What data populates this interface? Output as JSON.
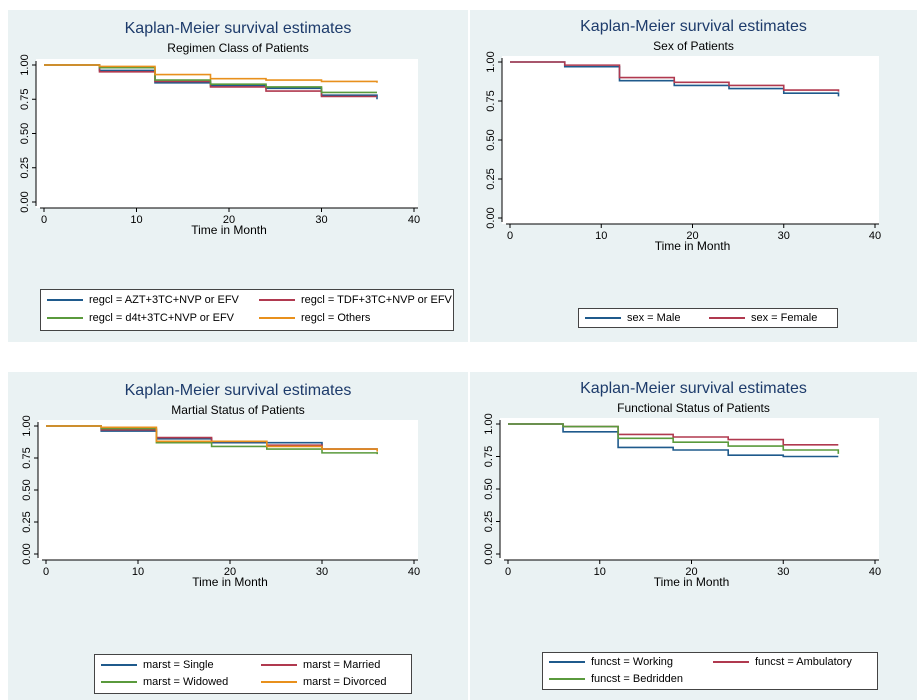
{
  "chart_data": [
    {
      "type": "line",
      "title": "Kaplan-Meier survival estimates",
      "subtitle": "Regimen Class of Patients",
      "xlabel": "Time in Month",
      "ylabel": "",
      "xlim": [
        0,
        40
      ],
      "ylim": [
        0,
        1
      ],
      "xticks": [
        "0",
        "10",
        "20",
        "30",
        "40"
      ],
      "yticks": [
        "0.00",
        "0.25",
        "0.50",
        "0.75",
        "1.00"
      ],
      "step": true,
      "legend_position": "bottom",
      "series": [
        {
          "name": "regcl = AZT+3TC+NVP or EFV",
          "color": "#1f5a8c",
          "x": [
            0,
            6,
            12,
            18,
            24,
            30,
            36
          ],
          "y": [
            1.0,
            0.96,
            0.87,
            0.85,
            0.83,
            0.78,
            0.75
          ]
        },
        {
          "name": "regcl = TDF+3TC+NVP or EFV",
          "color": "#b0394f",
          "x": [
            0,
            6,
            12,
            18,
            24,
            30,
            36
          ],
          "y": [
            1.0,
            0.95,
            0.88,
            0.84,
            0.81,
            0.77,
            0.77
          ]
        },
        {
          "name": "regcl = d4t+3TC+NVP or EFV",
          "color": "#5a9a3c",
          "x": [
            0,
            6,
            12,
            18,
            24,
            30,
            36
          ],
          "y": [
            1.0,
            0.98,
            0.89,
            0.86,
            0.84,
            0.8,
            0.8
          ]
        },
        {
          "name": "regcl = Others",
          "color": "#e8901c",
          "x": [
            0,
            6,
            12,
            18,
            24,
            30,
            36
          ],
          "y": [
            1.0,
            0.99,
            0.93,
            0.9,
            0.89,
            0.88,
            0.87
          ]
        }
      ]
    },
    {
      "type": "line",
      "title": "Kaplan-Meier survival estimates",
      "subtitle": "Sex of Patients",
      "xlabel": "Time in Month",
      "ylabel": "",
      "xlim": [
        0,
        40
      ],
      "ylim": [
        0,
        1
      ],
      "xticks": [
        "0",
        "10",
        "20",
        "30",
        "40"
      ],
      "yticks": [
        "0.00",
        "0.25",
        "0.50",
        "0.75",
        "1.00"
      ],
      "step": true,
      "legend_position": "bottom",
      "series": [
        {
          "name": "sex = Male",
          "color": "#1f5a8c",
          "x": [
            0,
            6,
            12,
            18,
            24,
            30,
            36
          ],
          "y": [
            1.0,
            0.97,
            0.88,
            0.85,
            0.83,
            0.8,
            0.78
          ]
        },
        {
          "name": "sex = Female",
          "color": "#b0394f",
          "x": [
            0,
            6,
            12,
            18,
            24,
            30,
            36
          ],
          "y": [
            1.0,
            0.98,
            0.9,
            0.87,
            0.85,
            0.82,
            0.81
          ]
        }
      ]
    },
    {
      "type": "line",
      "title": "Kaplan-Meier survival estimates",
      "subtitle": "Martial Status of Patients",
      "xlabel": "Time in Month",
      "ylabel": "",
      "xlim": [
        0,
        40
      ],
      "ylim": [
        0,
        1
      ],
      "xticks": [
        "0",
        "10",
        "20",
        "30",
        "40"
      ],
      "yticks": [
        "0.00",
        "0.25",
        "0.50",
        "0.75",
        "1.00"
      ],
      "step": true,
      "legend_position": "bottom",
      "series": [
        {
          "name": "marst = Single",
          "color": "#1f5a8c",
          "x": [
            0,
            6,
            12,
            18,
            24,
            30,
            36
          ],
          "y": [
            1.0,
            0.96,
            0.9,
            0.87,
            0.87,
            0.82,
            0.81
          ]
        },
        {
          "name": "marst = Married",
          "color": "#b0394f",
          "x": [
            0,
            6,
            12,
            18,
            24,
            30,
            36
          ],
          "y": [
            1.0,
            0.97,
            0.91,
            0.88,
            0.85,
            0.82,
            0.82
          ]
        },
        {
          "name": "marst = Widowed",
          "color": "#5a9a3c",
          "x": [
            0,
            6,
            12,
            18,
            24,
            30,
            36
          ],
          "y": [
            1.0,
            0.98,
            0.87,
            0.84,
            0.82,
            0.79,
            0.78
          ]
        },
        {
          "name": "marst = Divorced",
          "color": "#e8901c",
          "x": [
            0,
            6,
            12,
            18,
            24,
            30,
            36
          ],
          "y": [
            1.0,
            0.99,
            0.88,
            0.88,
            0.84,
            0.82,
            0.8
          ]
        }
      ]
    },
    {
      "type": "line",
      "title": "Kaplan-Meier survival estimates",
      "subtitle": "Functional Status of Patients",
      "xlabel": "Time in Month",
      "ylabel": "",
      "xlim": [
        0,
        40
      ],
      "ylim": [
        0,
        1
      ],
      "xticks": [
        "0",
        "10",
        "20",
        "30",
        "40"
      ],
      "yticks": [
        "0.00",
        "0.25",
        "0.50",
        "0.75",
        "1.00"
      ],
      "step": true,
      "legend_position": "bottom",
      "series": [
        {
          "name": "funcst = Working",
          "color": "#1f5a8c",
          "x": [
            0,
            6,
            12,
            18,
            24,
            30,
            36
          ],
          "y": [
            1.0,
            0.94,
            0.82,
            0.8,
            0.76,
            0.75,
            0.75
          ]
        },
        {
          "name": "funcst = Ambulatory",
          "color": "#b0394f",
          "x": [
            0,
            6,
            12,
            18,
            24,
            30,
            36
          ],
          "y": [
            1.0,
            0.98,
            0.92,
            0.9,
            0.88,
            0.84,
            0.84
          ]
        },
        {
          "name": "funcst = Bedridden",
          "color": "#5a9a3c",
          "x": [
            0,
            6,
            12,
            18,
            24,
            30,
            36
          ],
          "y": [
            1.0,
            0.98,
            0.89,
            0.86,
            0.83,
            0.8,
            0.77
          ]
        }
      ]
    }
  ]
}
